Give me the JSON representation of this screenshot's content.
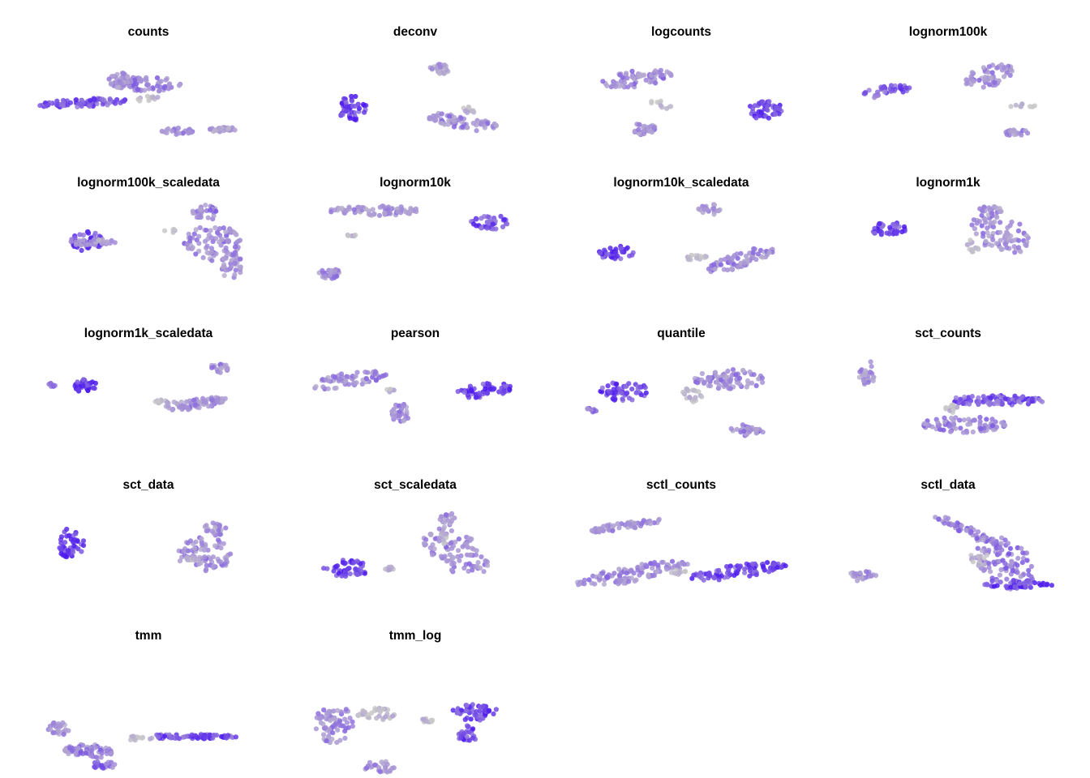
{
  "figure": {
    "type": "faceted-scatter",
    "background": "#ffffff",
    "color_low": "#c8c8c8",
    "color_mid": "#a18ad8",
    "color_high": "#4b17f0",
    "axes_visible": false,
    "legend": "none"
  },
  "panels": [
    {
      "title": "counts"
    },
    {
      "title": "deconv"
    },
    {
      "title": "logcounts"
    },
    {
      "title": "lognorm100k"
    },
    {
      "title": "lognorm100k_scaledata"
    },
    {
      "title": "lognorm10k"
    },
    {
      "title": "lognorm10k_scaledata"
    },
    {
      "title": "lognorm1k"
    },
    {
      "title": "lognorm1k_scaledata"
    },
    {
      "title": "pearson"
    },
    {
      "title": "quantile"
    },
    {
      "title": "sct_counts"
    },
    {
      "title": "sct_data"
    },
    {
      "title": "sct_scaledata"
    },
    {
      "title": "sctl_counts"
    },
    {
      "title": "sctl_data"
    },
    {
      "title": "tmm"
    },
    {
      "title": "tmm_log"
    }
  ]
}
